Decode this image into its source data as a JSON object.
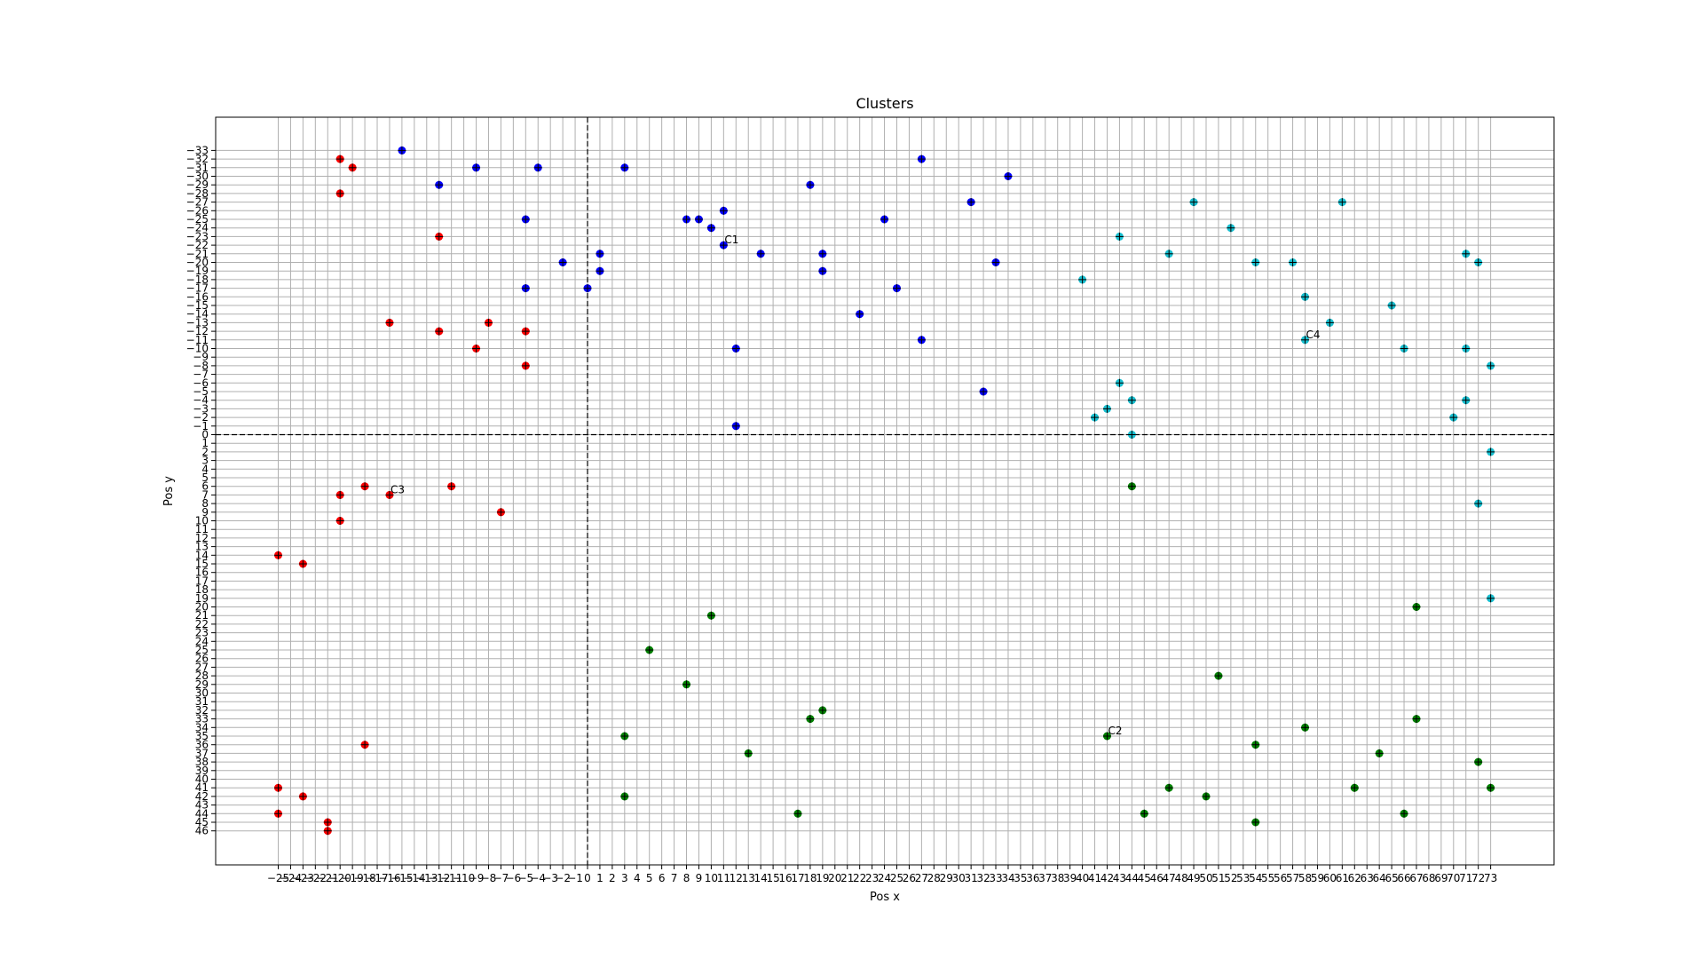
{
  "chart_data": {
    "type": "scatter",
    "title": "Clusters",
    "xlabel": "Pos x",
    "ylabel": "Pos y",
    "y_inverted": true,
    "grid": true,
    "reference_lines": {
      "x": 0,
      "y": 0
    },
    "x_ticks": [
      -25,
      -24,
      -23,
      -22,
      -21,
      -20,
      -19,
      -18,
      -17,
      -16,
      -15,
      -14,
      -13,
      -12,
      -11,
      -10,
      -9,
      -8,
      -7,
      -6,
      -5,
      -4,
      -3,
      -2,
      -1,
      0,
      1,
      2,
      3,
      4,
      5,
      6,
      7,
      8,
      9,
      10,
      11,
      12,
      13,
      14,
      15,
      16,
      17,
      18,
      19,
      20,
      21,
      22,
      23,
      24,
      25,
      26,
      27,
      28,
      29,
      30,
      31,
      32,
      33,
      34,
      35,
      36,
      37,
      38,
      39,
      40,
      41,
      42,
      43,
      44,
      45,
      46,
      47,
      48,
      49,
      50,
      51,
      52,
      53,
      54,
      55,
      56,
      57,
      58,
      59,
      60,
      61,
      62,
      63,
      64,
      65,
      66,
      67,
      68,
      69,
      70,
      71,
      72,
      73
    ],
    "x_tick_labels": [
      "−25",
      "−24",
      "−23",
      "−22",
      "−21",
      "−20",
      "−19",
      "−18",
      "−17",
      "−16",
      "−15",
      "−14",
      "−13",
      "−12",
      "−11",
      "−10",
      "−9",
      "−8",
      "−7",
      "−6",
      "−5",
      "−4",
      "−3",
      "−2",
      "−1",
      "0",
      "1",
      "2",
      "3",
      "4",
      "5",
      "6",
      "7",
      "8",
      "9",
      "10",
      "11",
      "12",
      "13",
      "14",
      "15",
      "16",
      "17",
      "18",
      "19",
      "20",
      "21",
      "22",
      "23",
      "24",
      "25",
      "26",
      "27",
      "28",
      "29",
      "30",
      "31",
      "32",
      "33",
      "34",
      "35",
      "36",
      "37",
      "38",
      "39",
      "40",
      "41",
      "42",
      "43",
      "44",
      "45",
      "46",
      "47",
      "48",
      "49",
      "50",
      "51",
      "52",
      "53",
      "54",
      "55",
      "56",
      "57",
      "58",
      "59",
      "60",
      "61",
      "62",
      "63",
      "64",
      "65",
      "66",
      "67",
      "68",
      "69",
      "70",
      "71",
      "72",
      "73"
    ],
    "y_ticks": [
      -33,
      -32,
      -31,
      -30,
      -29,
      -28,
      -27,
      -26,
      -25,
      -24,
      -23,
      -22,
      -21,
      -20,
      -19,
      -18,
      -17,
      -16,
      -15,
      -14,
      -13,
      -12,
      -11,
      -10,
      -9,
      -8,
      -7,
      -6,
      -5,
      -4,
      -3,
      -2,
      -1,
      0,
      1,
      2,
      3,
      4,
      5,
      6,
      7,
      8,
      9,
      10,
      11,
      12,
      13,
      14,
      15,
      16,
      17,
      18,
      19,
      20,
      21,
      22,
      23,
      24,
      25,
      26,
      27,
      28,
      29,
      30,
      31,
      32,
      33,
      34,
      35,
      36,
      37,
      38,
      39,
      40,
      41,
      42,
      43,
      44,
      45,
      46
    ],
    "y_tick_labels": [
      "−33",
      "−32",
      "−31",
      "−30",
      "−29",
      "−28",
      "−27",
      "−26",
      "−25",
      "−24",
      "−23",
      "−22",
      "−21",
      "−20",
      "−19",
      "−18",
      "−17",
      "−16",
      "−15",
      "−14",
      "−13",
      "−12",
      "−11",
      "−10",
      "−9",
      "−8",
      "−7",
      "−6",
      "−5",
      "−4",
      "−3",
      "−2",
      "−1",
      "0",
      "1",
      "2",
      "3",
      "4",
      "5",
      "6",
      "7",
      "8",
      "9",
      "10",
      "11",
      "12",
      "13",
      "14",
      "15",
      "16",
      "17",
      "18",
      "19",
      "20",
      "21",
      "22",
      "23",
      "24",
      "25",
      "26",
      "27",
      "28",
      "29",
      "30",
      "31",
      "32",
      "33",
      "34",
      "35",
      "36",
      "37",
      "38",
      "39",
      "40",
      "41",
      "42",
      "43",
      "44",
      "45",
      "46"
    ],
    "series": [
      {
        "color": "#0000ff",
        "points": [
          [
            -15,
            -33
          ],
          [
            -12,
            -29
          ],
          [
            -9,
            -31
          ],
          [
            -4,
            -31
          ],
          [
            3,
            -31
          ],
          [
            -5,
            -25
          ],
          [
            -2,
            -20
          ],
          [
            0,
            -17
          ],
          [
            -5,
            -17
          ],
          [
            1,
            -21
          ],
          [
            1,
            -19
          ],
          [
            8,
            -25
          ],
          [
            9,
            -25
          ],
          [
            10,
            -24
          ],
          [
            11,
            -26
          ],
          [
            11,
            -22
          ],
          [
            14,
            -21
          ],
          [
            12,
            -10
          ],
          [
            12,
            -1
          ],
          [
            18,
            -29
          ],
          [
            19,
            -21
          ],
          [
            19,
            -19
          ],
          [
            22,
            -14
          ],
          [
            24,
            -25
          ],
          [
            25,
            -17
          ],
          [
            27,
            -32
          ],
          [
            27,
            -11
          ],
          [
            31,
            -27
          ],
          [
            33,
            -20
          ],
          [
            34,
            -30
          ],
          [
            32,
            -5
          ]
        ]
      },
      {
        "color": "#ff0000",
        "points": [
          [
            -20,
            -32
          ],
          [
            -19,
            -31
          ],
          [
            -20,
            -28
          ],
          [
            -12,
            -23
          ],
          [
            -16,
            -13
          ],
          [
            -12,
            -12
          ],
          [
            -9,
            -10
          ],
          [
            -8,
            -13
          ],
          [
            -5,
            -12
          ],
          [
            -5,
            -8
          ],
          [
            -20,
            7
          ],
          [
            -18,
            6
          ],
          [
            -16,
            7
          ],
          [
            -11,
            6
          ],
          [
            -7,
            9
          ],
          [
            -20,
            10
          ],
          [
            -25,
            14
          ],
          [
            -23,
            15
          ],
          [
            -18,
            36
          ],
          [
            -25,
            41
          ],
          [
            -23,
            42
          ],
          [
            -25,
            44
          ],
          [
            -21,
            45
          ],
          [
            -21,
            46
          ]
        ]
      },
      {
        "color": "#008000",
        "points": [
          [
            44,
            6
          ],
          [
            10,
            21
          ],
          [
            5,
            25
          ],
          [
            8,
            29
          ],
          [
            3,
            35
          ],
          [
            3,
            42
          ],
          [
            13,
            37
          ],
          [
            18,
            33
          ],
          [
            19,
            32
          ],
          [
            17,
            44
          ],
          [
            42,
            35
          ],
          [
            45,
            44
          ],
          [
            47,
            41
          ],
          [
            50,
            42
          ],
          [
            51,
            28
          ],
          [
            54,
            36
          ],
          [
            54,
            45
          ],
          [
            58,
            34
          ],
          [
            62,
            41
          ],
          [
            64,
            37
          ],
          [
            66,
            44
          ],
          [
            67,
            20
          ],
          [
            67,
            33
          ],
          [
            72,
            38
          ],
          [
            73,
            41
          ]
        ]
      },
      {
        "color": "#17becf",
        "points": [
          [
            40,
            -18
          ],
          [
            41,
            -2
          ],
          [
            42,
            -3
          ],
          [
            43,
            -6
          ],
          [
            43,
            -23
          ],
          [
            44,
            -4
          ],
          [
            44,
            0
          ],
          [
            47,
            -21
          ],
          [
            49,
            -27
          ],
          [
            52,
            -24
          ],
          [
            54,
            -20
          ],
          [
            57,
            -20
          ],
          [
            58,
            -16
          ],
          [
            58,
            -11
          ],
          [
            60,
            -13
          ],
          [
            61,
            -27
          ],
          [
            65,
            -15
          ],
          [
            66,
            -10
          ],
          [
            70,
            -2
          ],
          [
            71,
            -10
          ],
          [
            71,
            -4
          ],
          [
            71,
            -21
          ],
          [
            72,
            -20
          ],
          [
            73,
            -8
          ],
          [
            73,
            2
          ],
          [
            72,
            8
          ],
          [
            73,
            19
          ]
        ]
      }
    ],
    "centroids": [
      {
        "label": "C1",
        "x": 11,
        "y": -22
      },
      {
        "label": "C2",
        "x": 42,
        "y": 35
      },
      {
        "label": "C3",
        "x": -16,
        "y": 7
      },
      {
        "label": "C4",
        "x": 58,
        "y": -11
      }
    ]
  }
}
